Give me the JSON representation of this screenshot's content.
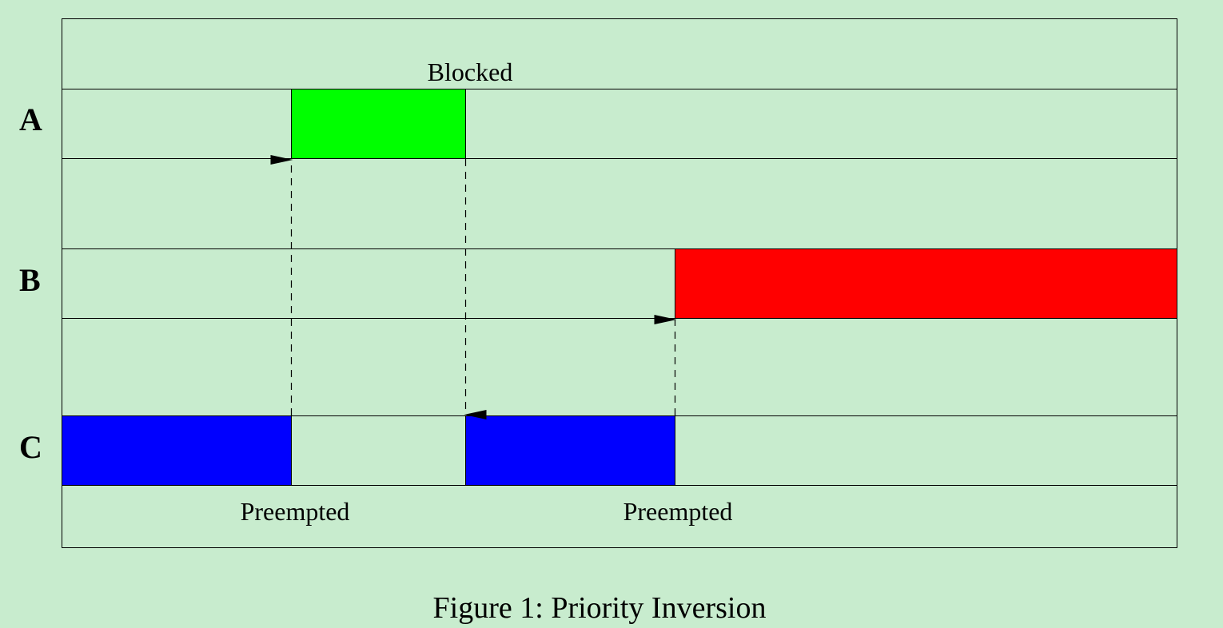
{
  "figure": {
    "caption": "Figure 1: Priority Inversion",
    "background_color": "#c8ecce",
    "line_color": "#000000"
  },
  "rows": {
    "a": {
      "label": "A"
    },
    "b": {
      "label": "B"
    },
    "c": {
      "label": "C"
    }
  },
  "bars": {
    "a_run": {
      "color": "#00ff00"
    },
    "b_run": {
      "color": "#ff0000"
    },
    "c_run_1": {
      "color": "#0000ff"
    },
    "c_run_2": {
      "color": "#0000ff"
    }
  },
  "annotations": {
    "blocked": "Blocked",
    "preempted_1": "Preempted",
    "preempted_2": "Preempted"
  },
  "arrows": [
    {
      "name": "c-to-a-preempt",
      "direction": "up",
      "style": "dashed"
    },
    {
      "name": "a-to-c-blocked",
      "direction": "down",
      "style": "dashed"
    },
    {
      "name": "c-to-b-preempt",
      "direction": "up",
      "style": "dashed"
    }
  ]
}
